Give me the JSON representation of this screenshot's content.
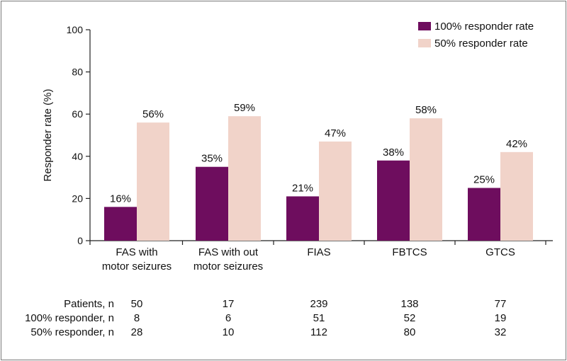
{
  "chart_data": {
    "type": "bar",
    "ylabel": "Responder rate (%)",
    "ylim": [
      0,
      100
    ],
    "yticks": [
      0,
      20,
      40,
      60,
      80,
      100
    ],
    "categories": [
      [
        "FAS with",
        "motor seizures"
      ],
      [
        "FAS with out",
        "motor seizures"
      ],
      [
        "FIAS"
      ],
      [
        "FBTCS"
      ],
      [
        "GTCS"
      ]
    ],
    "series": [
      {
        "name": "100% responder rate",
        "color": "#6e0d5e",
        "values": [
          16,
          35,
          21,
          38,
          25
        ],
        "labels": [
          "16%",
          "35%",
          "21%",
          "38%",
          "25%"
        ]
      },
      {
        "name": "50% responder rate",
        "color": "#f1d3c9",
        "values": [
          56,
          59,
          47,
          58,
          42
        ],
        "labels": [
          "56%",
          "59%",
          "47%",
          "58%",
          "42%"
        ]
      }
    ],
    "legend_position": "top-right",
    "grid": false
  },
  "table": {
    "rows": [
      {
        "label": "Patients, n",
        "values": [
          "50",
          "17",
          "239",
          "138",
          "77"
        ]
      },
      {
        "label": "100% responder, n",
        "values": [
          "8",
          "6",
          "51",
          "52",
          "19"
        ]
      },
      {
        "label": "50% responder, n",
        "values": [
          "28",
          "10",
          "112",
          "80",
          "32"
        ]
      }
    ]
  }
}
